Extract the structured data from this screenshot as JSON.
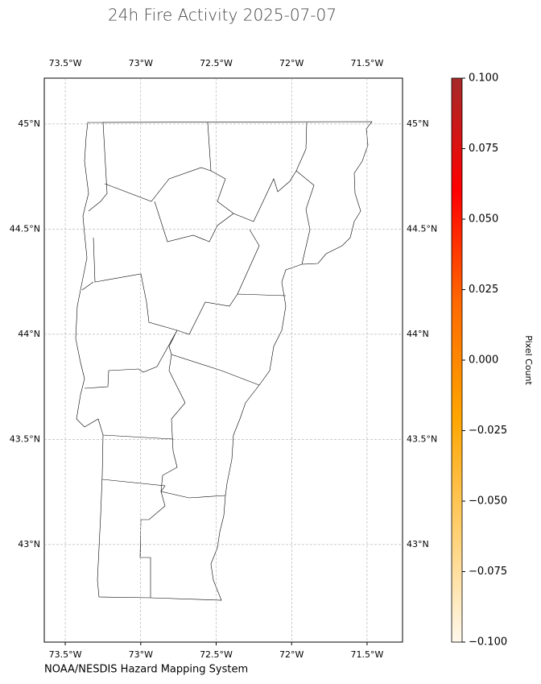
{
  "chart_data": {
    "type": "map",
    "title": "24h Fire Activity 2025-07-07",
    "xlim": [
      -73.639,
      -71.265
    ],
    "ylim": [
      42.536,
      45.218
    ],
    "xticks": [
      {
        "value": -73.5,
        "label": "73.5°W"
      },
      {
        "value": -73,
        "label": "73°W"
      },
      {
        "value": -72.5,
        "label": "72.5°W"
      },
      {
        "value": -72,
        "label": "72°W"
      },
      {
        "value": -71.5,
        "label": "71.5°W"
      }
    ],
    "yticks": [
      {
        "value": 43,
        "label": "43°N"
      },
      {
        "value": 43.5,
        "label": "43.5°N"
      },
      {
        "value": 44,
        "label": "44°N"
      },
      {
        "value": 44.5,
        "label": "44.5°N"
      },
      {
        "value": 45,
        "label": "45°N"
      }
    ],
    "grid": true,
    "colorbar": {
      "label": "Pixel Count",
      "lim": [
        -0.1,
        0.1
      ],
      "ticks": [
        {
          "value": -0.1,
          "label": "−0.100"
        },
        {
          "value": -0.075,
          "label": "−0.075"
        },
        {
          "value": -0.05,
          "label": "−0.050"
        },
        {
          "value": -0.025,
          "label": "−0.025"
        },
        {
          "value": 0,
          "label": "0.000"
        },
        {
          "value": 0.025,
          "label": "0.025"
        },
        {
          "value": 0.05,
          "label": "0.050"
        },
        {
          "value": 0.075,
          "label": "0.075"
        },
        {
          "value": 0.1,
          "label": "0.100"
        }
      ],
      "colors": [
        "#fff8ec",
        "#ffcf70",
        "#ffa500",
        "#ff6a00",
        "#ff0000",
        "#a52a2a"
      ]
    },
    "source": "NOAA/NESDIS Hazard Mapping System"
  }
}
